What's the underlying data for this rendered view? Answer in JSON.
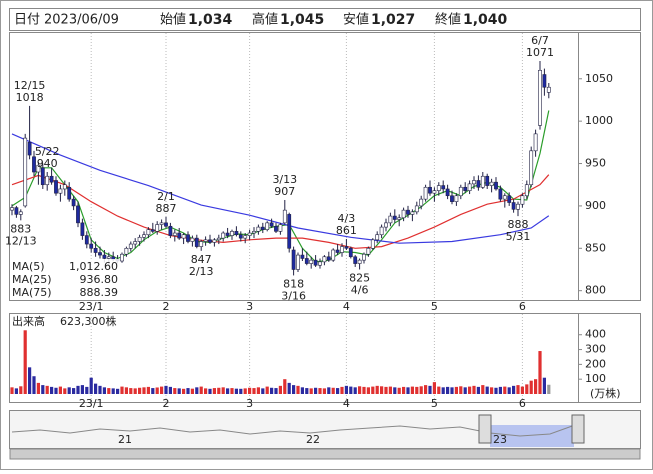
{
  "chart_data": {
    "type": "candlestick",
    "header": {
      "date_label": "日付",
      "date": "2023/06/09",
      "items": [
        {
          "label": "始値",
          "value": {
            "value": 1034,
            "label": "1,034"
          },
          "color": "#000000"
        },
        {
          "label": "高値",
          "value": {
            "value": 1045,
            "label": "1,045"
          },
          "color": "#e02020"
        },
        {
          "label": "安値",
          "value": {
            "value": 1027,
            "label": "1,027"
          },
          "color": "#1a8a1a"
        },
        {
          "label": "終値",
          "value": {
            "value": 1040,
            "label": "1,040"
          },
          "color": "#000000"
        }
      ]
    },
    "categories": [
      null,
      null,
      null,
      null,
      null,
      null,
      null,
      null,
      null,
      null,
      null,
      null,
      null,
      null,
      null,
      null,
      null,
      null,
      "23/1",
      null,
      null,
      null,
      null,
      null,
      null,
      null,
      null,
      null,
      null,
      null,
      null,
      null,
      null,
      null,
      null,
      "2",
      null,
      null,
      null,
      null,
      null,
      null,
      null,
      null,
      null,
      null,
      null,
      null,
      null,
      null,
      null,
      null,
      null,
      null,
      "3",
      null,
      null,
      null,
      null,
      null,
      null,
      null,
      null,
      null,
      null,
      null,
      null,
      null,
      null,
      null,
      null,
      null,
      null,
      null,
      null,
      null,
      "4",
      null,
      null,
      null,
      null,
      null,
      null,
      null,
      null,
      null,
      null,
      null,
      null,
      null,
      null,
      null,
      null,
      null,
      null,
      null,
      "5",
      null,
      null,
      null,
      null,
      null,
      null,
      null,
      null,
      null,
      null,
      null,
      null,
      null,
      null,
      null,
      null,
      null,
      null,
      null,
      "6",
      null,
      null,
      null,
      null,
      null,
      null
    ],
    "candles": [
      [
        895,
        902,
        889,
        898
      ],
      [
        898,
        900,
        886,
        890
      ],
      [
        890,
        896,
        883,
        893
      ],
      [
        900,
        985,
        898,
        980
      ],
      [
        975,
        1018,
        955,
        960
      ],
      [
        958,
        965,
        935,
        940
      ],
      [
        940,
        952,
        925,
        948
      ],
      [
        945,
        950,
        920,
        925
      ],
      [
        925,
        940,
        918,
        935
      ],
      [
        935,
        945,
        925,
        928
      ],
      [
        930,
        935,
        912,
        915
      ],
      [
        915,
        925,
        905,
        920
      ],
      [
        920,
        930,
        912,
        925
      ],
      [
        922,
        928,
        905,
        908
      ],
      [
        908,
        912,
        895,
        900
      ],
      [
        900,
        905,
        875,
        880
      ],
      [
        880,
        885,
        860,
        865
      ],
      [
        865,
        870,
        850,
        855
      ],
      [
        855,
        862,
        845,
        850
      ],
      [
        850,
        858,
        840,
        845
      ],
      [
        845,
        852,
        838,
        842
      ],
      [
        842,
        848,
        833,
        838
      ],
      [
        838,
        845,
        830,
        840
      ],
      [
        840,
        846,
        835,
        837
      ],
      [
        837,
        842,
        832,
        835
      ],
      [
        835,
        845,
        833,
        843
      ],
      [
        843,
        852,
        840,
        850
      ],
      [
        850,
        858,
        846,
        855
      ],
      [
        855,
        862,
        850,
        858
      ],
      [
        858,
        866,
        853,
        863
      ],
      [
        863,
        870,
        858,
        866
      ],
      [
        866,
        875,
        862,
        872
      ],
      [
        872,
        880,
        868,
        870
      ],
      [
        870,
        882,
        866,
        878
      ],
      [
        878,
        884,
        872,
        880
      ],
      [
        880,
        887,
        874,
        876
      ],
      [
        876,
        880,
        862,
        865
      ],
      [
        865,
        872,
        858,
        868
      ],
      [
        868,
        874,
        860,
        862
      ],
      [
        862,
        868,
        855,
        866
      ],
      [
        866,
        870,
        856,
        858
      ],
      [
        858,
        865,
        852,
        862
      ],
      [
        862,
        866,
        850,
        852
      ],
      [
        852,
        860,
        847,
        858
      ],
      [
        858,
        864,
        853,
        860
      ],
      [
        860,
        866,
        855,
        857
      ],
      [
        857,
        862,
        852,
        860
      ],
      [
        860,
        866,
        855,
        862
      ],
      [
        862,
        870,
        858,
        868
      ],
      [
        868,
        874,
        862,
        865
      ],
      [
        865,
        872,
        860,
        870
      ],
      [
        870,
        876,
        864,
        866
      ],
      [
        866,
        870,
        858,
        862
      ],
      [
        862,
        868,
        856,
        865
      ],
      [
        865,
        872,
        860,
        868
      ],
      [
        868,
        875,
        862,
        870
      ],
      [
        870,
        878,
        866,
        875
      ],
      [
        875,
        880,
        868,
        872
      ],
      [
        872,
        882,
        870,
        880
      ],
      [
        880,
        885,
        874,
        876
      ],
      [
        876,
        880,
        868,
        870
      ],
      [
        870,
        880,
        866,
        878
      ],
      [
        880,
        907,
        878,
        895
      ],
      [
        890,
        892,
        845,
        850
      ],
      [
        848,
        852,
        818,
        825
      ],
      [
        825,
        845,
        822,
        842
      ],
      [
        842,
        850,
        835,
        838
      ],
      [
        838,
        846,
        830,
        832
      ],
      [
        832,
        840,
        826,
        836
      ],
      [
        836,
        842,
        828,
        830
      ],
      [
        830,
        838,
        826,
        834
      ],
      [
        834,
        842,
        830,
        840
      ],
      [
        840,
        846,
        834,
        836
      ],
      [
        836,
        850,
        834,
        848
      ],
      [
        848,
        855,
        842,
        845
      ],
      [
        845,
        856,
        840,
        852
      ],
      [
        852,
        861,
        848,
        850
      ],
      [
        850,
        852,
        838,
        840
      ],
      [
        840,
        842,
        828,
        832
      ],
      [
        832,
        838,
        825,
        836
      ],
      [
        836,
        845,
        832,
        843
      ],
      [
        843,
        852,
        840,
        850
      ],
      [
        850,
        862,
        848,
        860
      ],
      [
        860,
        870,
        856,
        866
      ],
      [
        866,
        878,
        862,
        875
      ],
      [
        875,
        885,
        870,
        880
      ],
      [
        880,
        892,
        876,
        888
      ],
      [
        888,
        896,
        880,
        884
      ],
      [
        884,
        890,
        876,
        886
      ],
      [
        886,
        898,
        882,
        895
      ],
      [
        895,
        900,
        886,
        890
      ],
      [
        890,
        896,
        882,
        893
      ],
      [
        893,
        905,
        890,
        900
      ],
      [
        900,
        912,
        896,
        908
      ],
      [
        908,
        925,
        905,
        922
      ],
      [
        922,
        930,
        912,
        915
      ],
      [
        915,
        922,
        905,
        918
      ],
      [
        918,
        928,
        912,
        924
      ],
      [
        924,
        930,
        915,
        920
      ],
      [
        920,
        925,
        908,
        912
      ],
      [
        912,
        918,
        902,
        905
      ],
      [
        905,
        915,
        900,
        912
      ],
      [
        912,
        925,
        908,
        922
      ],
      [
        922,
        928,
        915,
        918
      ],
      [
        918,
        930,
        914,
        926
      ],
      [
        926,
        935,
        920,
        930
      ],
      [
        930,
        936,
        918,
        922
      ],
      [
        922,
        940,
        920,
        935
      ],
      [
        935,
        938,
        920,
        924
      ],
      [
        924,
        932,
        916,
        928
      ],
      [
        928,
        934,
        918,
        920
      ],
      [
        920,
        924,
        905,
        908
      ],
      [
        908,
        915,
        898,
        912
      ],
      [
        912,
        916,
        900,
        904
      ],
      [
        904,
        908,
        892,
        896
      ],
      [
        896,
        905,
        888,
        902
      ],
      [
        902,
        915,
        898,
        912
      ],
      [
        912,
        930,
        908,
        925
      ],
      [
        925,
        970,
        922,
        965
      ],
      [
        965,
        990,
        958,
        985
      ],
      [
        995,
        1071,
        990,
        1060
      ],
      [
        1055,
        1062,
        1030,
        1040
      ],
      [
        1034,
        1045,
        1027,
        1040
      ]
    ],
    "up_color": "#ffffff",
    "down_color": "#1e2aa0",
    "outline_color": "#222244",
    "ylim": [
      789,
      1104
    ],
    "yticks": [
      800,
      850,
      900,
      950,
      1000,
      1050
    ],
    "ma": [
      {
        "name": "MA(5)",
        "color": "#2a9d2a",
        "legend_value": {
          "value": 1012.6,
          "label": "1,012.60"
        },
        "x": [
          0,
          3,
          6,
          9,
          12,
          15,
          18,
          21,
          24,
          27,
          30,
          33,
          36,
          39,
          42,
          45,
          48,
          51,
          54,
          57,
          60,
          63,
          66,
          69,
          72,
          75,
          78,
          81,
          84,
          87,
          90,
          93,
          96,
          99,
          102,
          105,
          108,
          111,
          114,
          117,
          120,
          122
        ],
        "values": [
          900,
          910,
          945,
          945,
          925,
          905,
          860,
          845,
          838,
          845,
          860,
          870,
          875,
          868,
          858,
          857,
          862,
          867,
          866,
          872,
          876,
          878,
          850,
          834,
          836,
          846,
          845,
          842,
          860,
          880,
          889,
          899,
          912,
          918,
          912,
          923,
          928,
          922,
          908,
          907,
          962,
          1012.6
        ]
      },
      {
        "name": "MA(25)",
        "color": "#e03030",
        "legend_value": {
          "value": 936.8,
          "label": "936.80"
        },
        "x": [
          0,
          6,
          12,
          18,
          24,
          30,
          36,
          42,
          48,
          54,
          60,
          66,
          72,
          78,
          84,
          90,
          96,
          102,
          108,
          114,
          120,
          122
        ],
        "values": [
          925,
          936,
          925,
          905,
          888,
          875,
          865,
          860,
          857,
          860,
          862,
          862,
          857,
          850,
          852,
          862,
          875,
          890,
          902,
          908,
          925,
          936.8
        ]
      },
      {
        "name": "MA(75)",
        "color": "#3a3ae0",
        "legend_value": {
          "value": 888.39,
          "label": "888.39"
        },
        "x": [
          0,
          11,
          20,
          31,
          43,
          54,
          65,
          77,
          88,
          100,
          111,
          118,
          122
        ],
        "values": [
          985,
          960,
          942,
          924,
          901,
          889,
          874,
          863,
          856,
          858,
          866,
          874,
          888.39
        ]
      }
    ],
    "annotations": [
      {
        "date": "12/15",
        "price": 1018,
        "at": "high"
      },
      {
        "date": "12/13",
        "price": 883,
        "at": "low"
      },
      {
        "date": "2/1",
        "price": 887,
        "at": "high"
      },
      {
        "date": "2/13",
        "price": 847,
        "at": "low"
      },
      {
        "date": "3/13",
        "price": 907,
        "at": "high"
      },
      {
        "date": "3/16",
        "price": 818,
        "at": "low"
      },
      {
        "date": "4/3",
        "price": 861,
        "at": "high"
      },
      {
        "date": "4/6",
        "price": 825,
        "at": "low"
      },
      {
        "date": "5/22",
        "price": 940,
        "at": "high"
      },
      {
        "date": "5/31",
        "price": 888,
        "at": "low"
      },
      {
        "date": "6/7",
        "price": 1071,
        "at": "high"
      }
    ],
    "volume": {
      "title": "出来高",
      "last": {
        "value": 62.33,
        "label": "623,300株"
      },
      "unit": "(万株)",
      "up_color": "#e03030",
      "down_color": "#2a2aa0",
      "current_color": "#999999",
      "ylim": [
        0,
        540
      ],
      "yticks": [
        100,
        200,
        300,
        400
      ],
      "values": [
        45,
        38,
        52,
        430,
        180,
        120,
        75,
        60,
        55,
        48,
        42,
        50,
        38,
        45,
        40,
        55,
        60,
        48,
        110,
        70,
        55,
        45,
        40,
        38,
        35,
        50,
        45,
        40,
        38,
        42,
        45,
        48,
        40,
        44,
        50,
        55,
        48,
        40,
        38,
        35,
        40,
        36,
        45,
        50,
        38,
        35,
        40,
        42,
        45,
        38,
        40,
        36,
        35,
        38,
        42,
        40,
        45,
        38,
        50,
        42,
        40,
        55,
        100,
        75,
        60,
        55,
        45,
        40,
        38,
        42,
        40,
        38,
        45,
        42,
        40,
        48,
        55,
        50,
        45,
        52,
        48,
        45,
        50,
        55,
        52,
        48,
        50,
        45,
        42,
        48,
        45,
        50,
        48,
        52,
        60,
        55,
        80,
        50,
        45,
        48,
        45,
        48,
        52,
        45,
        50,
        55,
        48,
        60,
        50,
        45,
        42,
        48,
        50,
        45,
        55,
        60,
        50,
        65,
        90,
        100,
        290,
        110,
        62.33
      ]
    },
    "navigator": {
      "labels": [
        "21",
        "22",
        "23"
      ]
    }
  }
}
